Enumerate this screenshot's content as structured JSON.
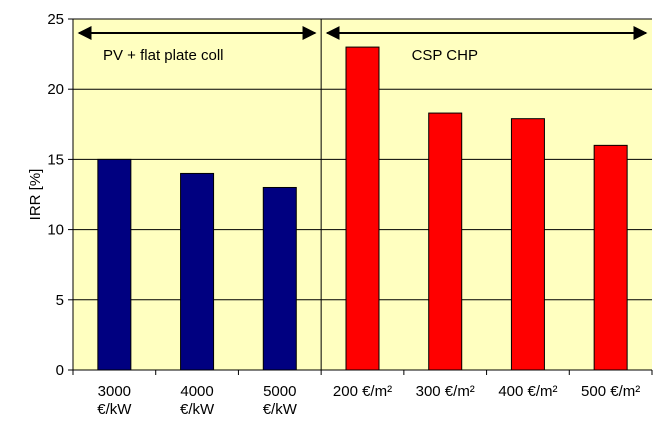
{
  "chart_data": {
    "type": "bar",
    "title": "",
    "xlabel": "",
    "ylabel": "IRR [%]",
    "ylim": [
      0,
      25
    ],
    "yticks": [
      0,
      5,
      10,
      15,
      20,
      25
    ],
    "grid": true,
    "categories": [
      [
        "3000",
        "€/kW"
      ],
      [
        "4000",
        "€/kW"
      ],
      [
        "5000",
        "€/kW"
      ],
      [
        "200 €/m²"
      ],
      [
        "300 €/m²"
      ],
      [
        "400 €/m²"
      ],
      [
        "500 €/m²"
      ]
    ],
    "values": [
      15,
      14,
      13,
      23,
      18.3,
      17.9,
      16
    ],
    "bar_colors": [
      "#000080",
      "#000080",
      "#000080",
      "#ff0000",
      "#ff0000",
      "#ff0000",
      "#ff0000"
    ],
    "groups": [
      {
        "label": "PV + flat plate coll",
        "start": 0,
        "end": 2
      },
      {
        "label": "CSP CHP",
        "start": 3,
        "end": 6
      }
    ],
    "plot_background": "#ffffc0",
    "gridline_color": "#000000"
  }
}
